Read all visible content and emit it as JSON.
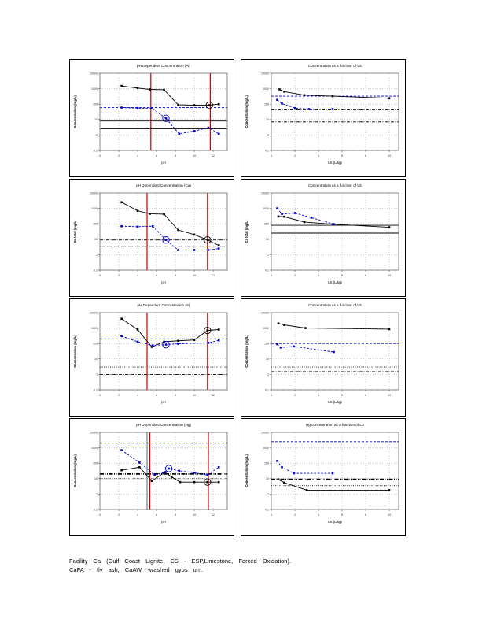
{
  "caption": {
    "line1": "Facility Ca (Gulf Coast Lignite, CS - ESP,Limestone, Forced Oxidation).",
    "line2": "CaFA - fly ash; CaAW -washed gyps um."
  },
  "colors": {
    "series_black": "#000000",
    "series_blue": "#0000cc",
    "ref_blue": "#0000dd",
    "vline_red": "#cc0000",
    "vline_gray": "#808080",
    "grid": "#999999",
    "plot_border": "#555555"
  },
  "chart_data": [
    {
      "type": "line",
      "title": "pH Dependent Concentration (Al)",
      "xlabel": "pH",
      "ylabel": "Concentration (mg/L)",
      "xlim": [
        0,
        13.5
      ],
      "xticks": [
        0,
        2,
        4,
        6,
        8,
        10,
        12
      ],
      "ylim": [
        0.1,
        10000
      ],
      "yticks": [
        "10000",
        "1000",
        "100",
        "10",
        "1",
        "0.1"
      ],
      "vlines": [
        {
          "x": 5.4,
          "color": "#cc0000"
        },
        {
          "x": 11.7,
          "color": "#cc0000"
        }
      ],
      "reflines": [
        {
          "y": 60,
          "style": "blue-dash"
        },
        {
          "y": 8,
          "style": "black-solid"
        },
        {
          "y": 2.5,
          "style": "black-solid"
        }
      ],
      "series": [
        {
          "name": "pH dependent",
          "color": "#000000",
          "dash": "solid",
          "points": [
            [
              2.3,
              1500
            ],
            [
              4,
              1100
            ],
            [
              5.3,
              900
            ],
            [
              6.8,
              850
            ],
            [
              8.3,
              90
            ],
            [
              10,
              85
            ],
            [
              11.6,
              85
            ],
            [
              12.6,
              100
            ]
          ],
          "circled": [
            6
          ]
        },
        {
          "name": "secondary",
          "color": "#0000cc",
          "dash": "dash",
          "points": [
            [
              2.3,
              60
            ],
            [
              4,
              55
            ],
            [
              5.5,
              55
            ],
            [
              7,
              12
            ],
            [
              8.4,
              1.2
            ],
            [
              10,
              1.8
            ],
            [
              11.5,
              3
            ],
            [
              12.6,
              1.2
            ]
          ],
          "circled": [
            3
          ]
        }
      ]
    },
    {
      "type": "line",
      "title": "Concentration as a function of LS",
      "xlabel": "LS (L/kg)",
      "ylabel": "Concentration (mg/L)",
      "xlim": [
        0,
        10.8
      ],
      "xticks": [
        0,
        2,
        4,
        6,
        8,
        10
      ],
      "ylim": [
        0.1,
        10000
      ],
      "yticks": [
        "10000",
        "1000",
        "100",
        "10",
        "1",
        "0.1"
      ],
      "vlines": [],
      "reflines": [
        {
          "y": 330,
          "style": "blue-dash"
        },
        {
          "y": 42,
          "style": "black-dashdot"
        },
        {
          "y": 7,
          "style": "black-dashdot"
        }
      ],
      "series": [
        {
          "name": "LS black",
          "color": "#000000",
          "dash": "solid",
          "points": [
            [
              0.7,
              900
            ],
            [
              1.1,
              650
            ],
            [
              2.8,
              380
            ],
            [
              5.2,
              330
            ],
            [
              10,
              240
            ]
          ],
          "circled": []
        },
        {
          "name": "LS blue",
          "color": "#0000cc",
          "dash": "dash",
          "points": [
            [
              0.5,
              190
            ],
            [
              0.9,
              110
            ],
            [
              2.0,
              55
            ],
            [
              3.2,
              48
            ],
            [
              5.2,
              48
            ]
          ],
          "circled": []
        }
      ]
    },
    {
      "type": "line",
      "title": "pH Dependent Concentration (Ca)",
      "xlabel": "pH",
      "ylabel": "Ca total (mg/L)",
      "xlim": [
        0,
        13.5
      ],
      "xticks": [
        0,
        2,
        4,
        6,
        8,
        10,
        12
      ],
      "ylim": [
        0.1,
        10000
      ],
      "yticks": [
        "10000",
        "1000",
        "100",
        "10",
        "1",
        "0.1"
      ],
      "vlines": [
        {
          "x": 5.0,
          "color": "#cc0000"
        },
        {
          "x": 11.4,
          "color": "#cc0000"
        }
      ],
      "reflines": [
        {
          "y": 9,
          "style": "black-dashdot"
        },
        {
          "y": 3.5,
          "style": "black-longdash"
        }
      ],
      "series": [
        {
          "name": "pH dependent",
          "color": "#000000",
          "dash": "solid",
          "points": [
            [
              2.3,
              2500
            ],
            [
              4,
              700
            ],
            [
              5.3,
              450
            ],
            [
              6.8,
              420
            ],
            [
              8.3,
              40
            ],
            [
              10,
              20
            ],
            [
              11.4,
              9
            ],
            [
              12.6,
              4
            ]
          ],
          "circled": [
            6
          ]
        },
        {
          "name": "secondary",
          "color": "#0000cc",
          "dash": "dash",
          "points": [
            [
              2.3,
              70
            ],
            [
              4,
              65
            ],
            [
              5.6,
              70
            ],
            [
              7,
              9
            ],
            [
              8.3,
              2
            ],
            [
              10,
              2
            ],
            [
              11.5,
              2
            ],
            [
              12.6,
              2.5
            ]
          ],
          "circled": [
            3
          ]
        }
      ]
    },
    {
      "type": "line",
      "title": "Concentration as a function of LS",
      "xlabel": "LS (L/kg)",
      "ylabel": "Ca total (mg/L)",
      "xlim": [
        0,
        10.8
      ],
      "xticks": [
        0,
        2,
        4,
        6,
        8,
        10
      ],
      "ylim": [
        0.1,
        10000
      ],
      "yticks": [
        "10000",
        "1000",
        "100",
        "10",
        "1",
        "0.1"
      ],
      "vlines": [],
      "reflines": [
        {
          "y": 80,
          "style": "black-solid"
        },
        {
          "y": 25,
          "style": "black-solid"
        }
      ],
      "series": [
        {
          "name": "LS black",
          "color": "#000000",
          "dash": "solid",
          "points": [
            [
              0.6,
              300
            ],
            [
              1.1,
              290
            ],
            [
              2.8,
              130
            ],
            [
              5.2,
              95
            ],
            [
              10,
              60
            ]
          ],
          "circled": []
        },
        {
          "name": "LS blue",
          "color": "#0000cc",
          "dash": "dash",
          "points": [
            [
              0.5,
              1000
            ],
            [
              0.9,
              430
            ],
            [
              2.0,
              500
            ],
            [
              3.4,
              250
            ],
            [
              5.3,
              95
            ]
          ],
          "circled": []
        }
      ]
    },
    {
      "type": "line",
      "title": "pH Dependent Concentration (S)",
      "xlabel": "pH",
      "ylabel": "Concentration (mg/L)",
      "xlim": [
        0,
        13.5
      ],
      "xticks": [
        0,
        2,
        4,
        6,
        8,
        10,
        12
      ],
      "ylim": [
        0.1,
        10000
      ],
      "yticks": [
        "10000",
        "1000",
        "100",
        "10",
        "1",
        "0.1"
      ],
      "vlines": [
        {
          "x": 5.0,
          "color": "#cc0000"
        },
        {
          "x": 11.4,
          "color": "#cc0000"
        }
      ],
      "reflines": [
        {
          "y": 200,
          "style": "blue-dash"
        },
        {
          "y": 3,
          "style": "black-dot"
        },
        {
          "y": 1,
          "style": "black-dashdot"
        }
      ],
      "series": [
        {
          "name": "pH dependent",
          "color": "#000000",
          "dash": "solid",
          "points": [
            [
              2.3,
              4000
            ],
            [
              4,
              800
            ],
            [
              5.5,
              60
            ],
            [
              6.8,
              130
            ],
            [
              8.3,
              150
            ],
            [
              10,
              170
            ],
            [
              11.4,
              700
            ],
            [
              12.6,
              800
            ]
          ],
          "circled": [
            6
          ]
        },
        {
          "name": "secondary",
          "color": "#0000cc",
          "dash": "dash",
          "points": [
            [
              2.3,
              300
            ],
            [
              4,
              130
            ],
            [
              5.6,
              75
            ],
            [
              7,
              85
            ],
            [
              8.3,
              95
            ],
            [
              11.5,
              110
            ],
            [
              12.6,
              160
            ]
          ],
          "circled": [
            3
          ]
        }
      ]
    },
    {
      "type": "line",
      "title": "Concentration as a function of LS",
      "xlabel": "LS (L/kg)",
      "ylabel": "Concentration (mg/L)",
      "xlim": [
        0,
        10.8
      ],
      "xticks": [
        0,
        2,
        4,
        6,
        8,
        10
      ],
      "ylim": [
        0.1,
        10000
      ],
      "yticks": [
        "10000",
        "1000",
        "100",
        "10",
        "1",
        "0.1"
      ],
      "vlines": [],
      "reflines": [
        {
          "y": 100,
          "style": "blue-dash"
        },
        {
          "y": 3,
          "style": "black-dot"
        },
        {
          "y": 1.5,
          "style": "black-dashdot"
        }
      ],
      "series": [
        {
          "name": "LS black",
          "color": "#000000",
          "dash": "solid",
          "points": [
            [
              0.6,
              2000
            ],
            [
              1.1,
              1600
            ],
            [
              2.9,
              1000
            ],
            [
              10,
              850
            ]
          ],
          "circled": []
        },
        {
          "name": "LS blue",
          "color": "#0000cc",
          "dash": "dash",
          "points": [
            [
              0.5,
              90
            ],
            [
              0.8,
              55
            ],
            [
              1.9,
              65
            ],
            [
              5.3,
              28
            ]
          ],
          "circled": []
        }
      ]
    },
    {
      "type": "line",
      "title": "pH Dependent Concentration (Hg)",
      "xlabel": "pH",
      "ylabel": "Concentration (mg/L)",
      "xlim": [
        0,
        13.5
      ],
      "xticks": [
        0,
        2,
        4,
        6,
        8,
        10,
        12
      ],
      "ylim": [
        0.1,
        10000
      ],
      "yticks": [
        "10000",
        "1000",
        "100",
        "10",
        "1",
        "0.1"
      ],
      "vlines": [
        {
          "x": 5.0,
          "color": "#808080"
        },
        {
          "x": 5.3,
          "color": "#cc0000"
        },
        {
          "x": 11.5,
          "color": "#cc0000"
        }
      ],
      "reflines": [
        {
          "y": 2000,
          "style": "blue-dash"
        },
        {
          "y": 20,
          "style": "black-dashdot-thick"
        },
        {
          "y": 10,
          "style": "black-dot"
        }
      ],
      "series": [
        {
          "name": "pH dependent black",
          "color": "#000000",
          "dash": "solid",
          "points": [
            [
              2.3,
              35
            ],
            [
              4.2,
              55
            ],
            [
              5.5,
              7
            ],
            [
              6.9,
              26
            ],
            [
              7.6,
              13
            ],
            [
              8.5,
              6
            ],
            [
              10,
              6
            ],
            [
              11.4,
              6
            ],
            [
              12.6,
              6
            ]
          ],
          "circled": [
            7
          ]
        },
        {
          "name": "pH dependent blue",
          "color": "#0000cc",
          "dash": "dash",
          "points": [
            [
              2.3,
              700
            ],
            [
              4.2,
              110
            ],
            [
              5.8,
              18
            ],
            [
              6.9,
              26
            ],
            [
              7.3,
              45
            ],
            [
              8.4,
              32
            ],
            [
              10,
              24
            ],
            [
              11.4,
              17
            ],
            [
              12.6,
              55
            ]
          ],
          "circled": [
            4
          ]
        }
      ]
    },
    {
      "type": "line",
      "title": "Hg concentration as a function of LS",
      "xlabel": "LS (L/kg)",
      "ylabel": "Concentration (mg/L)",
      "xlim": [
        0,
        10.8
      ],
      "xticks": [
        0,
        2,
        4,
        6,
        8,
        10
      ],
      "ylim": [
        0.1,
        10000
      ],
      "yticks": [
        "10000",
        "1000",
        "100",
        "10",
        "1",
        "0.1"
      ],
      "vlines": [],
      "reflines": [
        {
          "y": 2500,
          "style": "blue-dash"
        },
        {
          "y": 9,
          "style": "black-dashdot-thick"
        },
        {
          "y": 3.5,
          "style": "black-dot"
        }
      ],
      "series": [
        {
          "name": "LS blue",
          "color": "#0000cc",
          "dash": "dash",
          "points": [
            [
              0.5,
              140
            ],
            [
              0.9,
              55
            ],
            [
              1.9,
              22
            ],
            [
              5.2,
              22
            ]
          ],
          "circled": []
        },
        {
          "name": "LS black",
          "color": "#000000",
          "dash": "solid",
          "points": [
            [
              0.6,
              9
            ],
            [
              1.1,
              5.5
            ],
            [
              3,
              1.8
            ],
            [
              10,
              1.8
            ]
          ],
          "circled": []
        }
      ]
    }
  ]
}
